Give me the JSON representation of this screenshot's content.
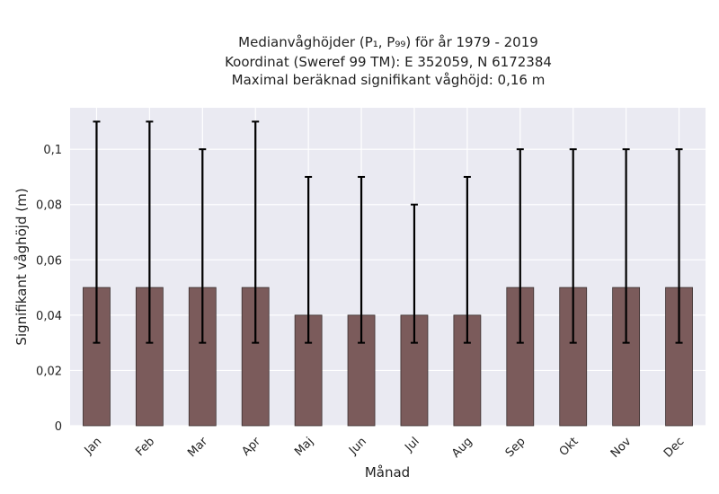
{
  "chart_data": {
    "type": "bar",
    "title": "Medianvåghöjder (P₁, P₉₉) för år 1979 - 2019",
    "subtitle_lines": [
      "Koordinat (Sweref 99 TM): E 352059, N 6172384",
      "Maximal beräknad signifikant våghöjd: 0,16 m"
    ],
    "xlabel": "Månad",
    "ylabel": "Signifikant våghöjd (m)",
    "categories": [
      "Jan",
      "Feb",
      "Mar",
      "Apr",
      "Maj",
      "Jun",
      "Jul",
      "Aug",
      "Sep",
      "Okt",
      "Nov",
      "Dec"
    ],
    "values": [
      0.05,
      0.05,
      0.05,
      0.05,
      0.04,
      0.04,
      0.04,
      0.04,
      0.05,
      0.05,
      0.05,
      0.05
    ],
    "error_low": [
      0.03,
      0.03,
      0.03,
      0.03,
      0.03,
      0.03,
      0.03,
      0.03,
      0.03,
      0.03,
      0.03,
      0.03
    ],
    "error_high": [
      0.11,
      0.11,
      0.1,
      0.11,
      0.09,
      0.09,
      0.08,
      0.09,
      0.1,
      0.1,
      0.1,
      0.1
    ],
    "ylim": [
      0,
      0.115
    ],
    "yticks": [
      0,
      0.02,
      0.04,
      0.06,
      0.08,
      0.1
    ],
    "ytick_labels": [
      "0",
      "0,02",
      "0,04",
      "0,06",
      "0,08",
      "0,1"
    ],
    "grid": true,
    "colors": {
      "bar": "#7b5b5b",
      "error": "#000000",
      "background": "#eaeaf2",
      "grid": "#ffffff"
    }
  }
}
